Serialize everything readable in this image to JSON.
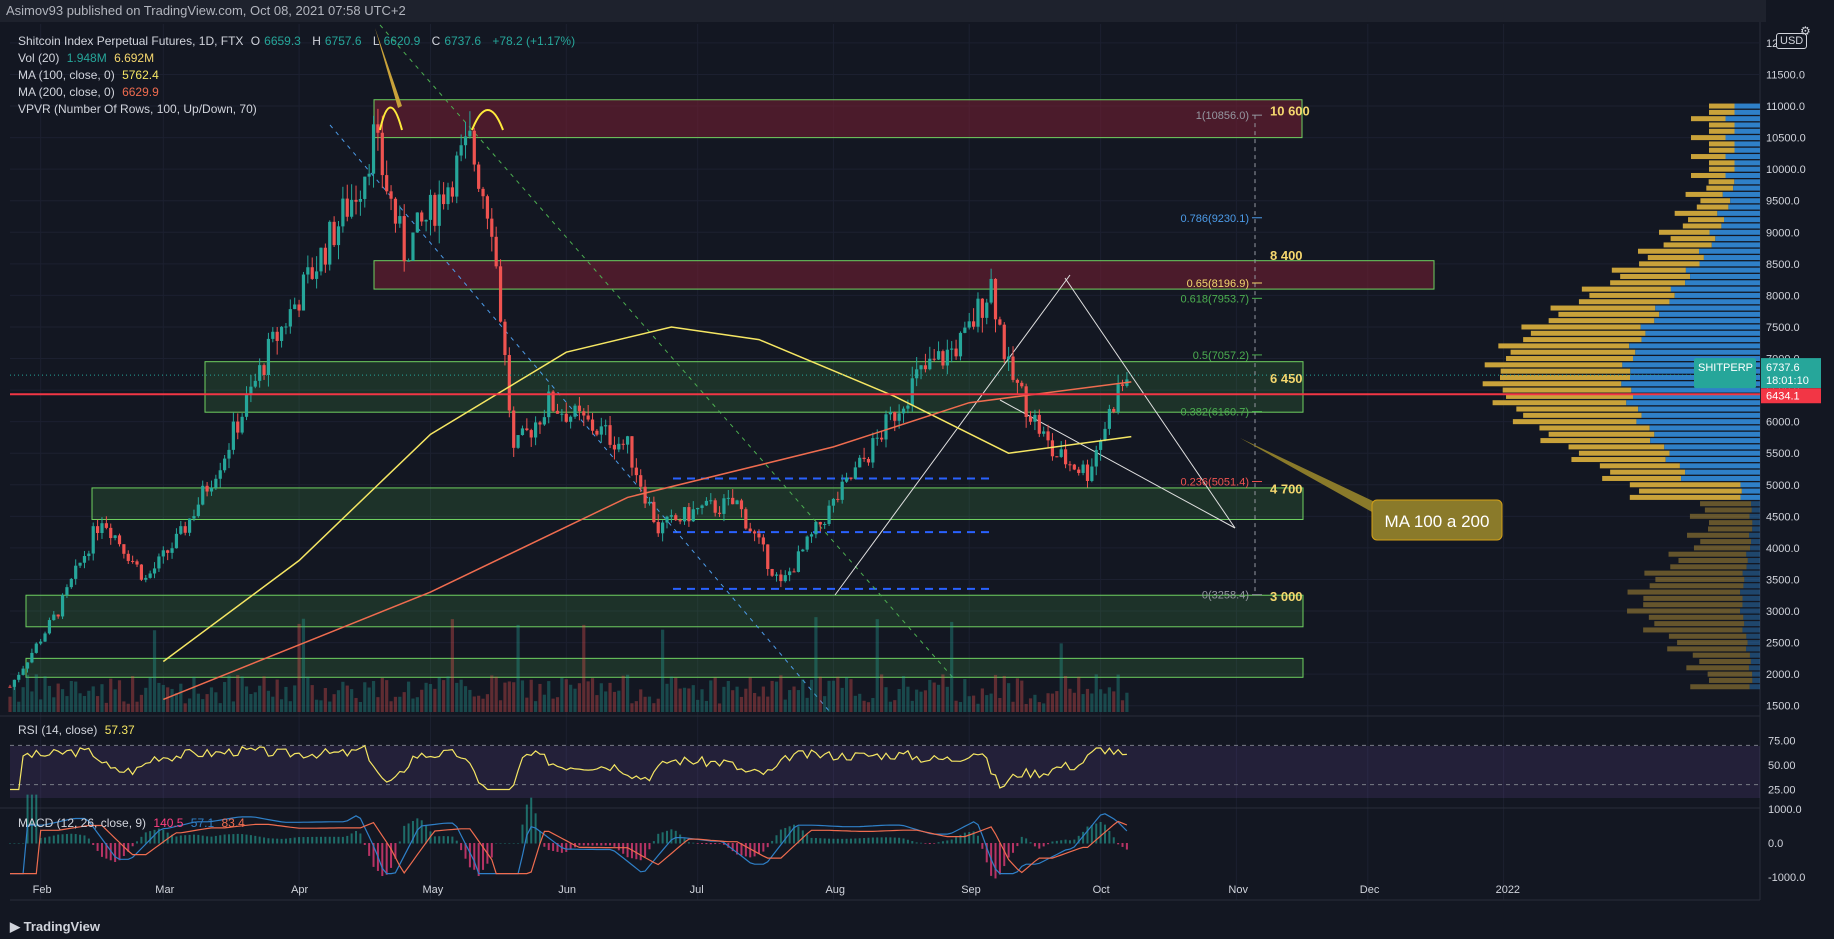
{
  "header": {
    "published_text": "Asimov93 published on TradingView.com, Oct 08, 2021 07:58 UTC+2"
  },
  "legend": {
    "title": "Shitcoin Index Perpetual Futures, 1D, FTX",
    "ohlc": [
      {
        "label": "O",
        "value": "6659.3"
      },
      {
        "label": "H",
        "value": "6757.6"
      },
      {
        "label": "L",
        "value": "6620.9"
      },
      {
        "label": "C",
        "value": "6737.6"
      }
    ],
    "change": "+78.2 (+1.17%)",
    "vol_label": "Vol (20)",
    "vol_values": [
      "1.948M",
      "6.692M"
    ],
    "ma100_label": "MA (100, close, 0)",
    "ma100_value": "5762.4",
    "ma200_label": "MA (200, close, 0)",
    "ma200_value": "6629.9",
    "vpvr_label": "VPVR (Number Of Rows, 100, Up/Down, 70)",
    "rsi_label": "RSI (14, close)",
    "rsi_value": "57.37",
    "macd_label": "MACD (12, 26, close, 9)",
    "macd_values": [
      "140.5",
      "57.1",
      "83.4"
    ]
  },
  "axis": {
    "currency": "USD",
    "price_ticks": [
      "12000.0",
      "11500.0",
      "11000.0",
      "10500.0",
      "10000.0",
      "9500.0",
      "9000.0",
      "8500.0",
      "8000.0",
      "7500.0",
      "7000.0",
      "6500.0",
      "6000.0",
      "5500.0",
      "5000.0",
      "4500.0",
      "4000.0",
      "3500.0",
      "3000.0",
      "2500.0",
      "2000.0",
      "1500.0"
    ],
    "rsi_ticks": [
      "75.00",
      "50.00",
      "25.00"
    ],
    "macd_ticks": [
      "1000.0",
      "0.0",
      "-1000.0"
    ],
    "months": [
      "Feb",
      "Mar",
      "Apr",
      "May",
      "Jun",
      "Jul",
      "Aug",
      "Sep",
      "Oct",
      "Nov",
      "Dec",
      "2022"
    ]
  },
  "price_labels": {
    "ticker": "SHITPERP",
    "last_price": "6737.6",
    "countdown": "18:01:10",
    "red_line_price": "6434.1"
  },
  "levels": [
    "10 600",
    "8 400",
    "6 450",
    "4 700",
    "3 000"
  ],
  "fib": [
    {
      "label": "1(10856.0)",
      "price": 10856.0,
      "color": "#9598a1"
    },
    {
      "label": "0.786(9230.1)",
      "price": 9230.1,
      "color": "#4c9be8"
    },
    {
      "label": "0.65(8196.9)",
      "price": 8196.9,
      "color": "#f5d76e"
    },
    {
      "label": "0.618(7953.7)",
      "price": 7953.7,
      "color": "#4caf50"
    },
    {
      "label": "0.5(7057.2)",
      "price": 7057.2,
      "color": "#4caf50"
    },
    {
      "label": "0.382(6160.7)",
      "price": 6160.7,
      "color": "#4caf50"
    },
    {
      "label": "0.236(5051.4)",
      "price": 5051.4,
      "color": "#ef5350"
    },
    {
      "label": "0(3258.4)",
      "price": 3258.4,
      "color": "#9598a1"
    }
  ],
  "annotation": "MA 100 a 200",
  "footer": {
    "brand": "TradingView"
  },
  "colors": {
    "background": "#131722",
    "up": "#26a69a",
    "down": "#ef5350",
    "ma100": "#f5e663",
    "ma200": "#ef6c4f",
    "green_zone": "#4caf50",
    "red_zone": "#7a1f33",
    "vpvr_up": "#2f80c8",
    "vpvr_down": "#c9a23a"
  },
  "chart_data": {
    "type": "candlestick",
    "title": "Shitcoin Index Perpetual Futures, 1D, FTX",
    "ylim": [
      1500,
      12000
    ],
    "zones": [
      {
        "type": "resistance",
        "from": 10500,
        "to": 11100
      },
      {
        "type": "resistance",
        "from": 8100,
        "to": 8550
      },
      {
        "type": "support",
        "from": 6150,
        "to": 6950
      },
      {
        "type": "support",
        "from": 4450,
        "to": 4950
      },
      {
        "type": "support",
        "from": 2750,
        "to": 3250
      },
      {
        "type": "support",
        "from": 1950,
        "to": 2250
      }
    ],
    "horizontal_line": 6434.1,
    "last_close": 6737.6,
    "price_path": [
      {
        "date": "2021-01-25",
        "close": 1800
      },
      {
        "date": "2021-02-05",
        "close": 3000
      },
      {
        "date": "2021-02-15",
        "close": 4500
      },
      {
        "date": "2021-02-25",
        "close": 3500
      },
      {
        "date": "2021-03-05",
        "close": 4200
      },
      {
        "date": "2021-03-15",
        "close": 5500
      },
      {
        "date": "2021-03-25",
        "close": 7100
      },
      {
        "date": "2021-04-05",
        "close": 8500
      },
      {
        "date": "2021-04-15",
        "close": 9800
      },
      {
        "date": "2021-04-18",
        "close": 10500
      },
      {
        "date": "2021-04-25",
        "close": 8700
      },
      {
        "date": "2021-05-01",
        "close": 9300
      },
      {
        "date": "2021-05-10",
        "close": 10400
      },
      {
        "date": "2021-05-15",
        "close": 9200
      },
      {
        "date": "2021-05-20",
        "close": 5500
      },
      {
        "date": "2021-05-28",
        "close": 6300
      },
      {
        "date": "2021-06-05",
        "close": 6000
      },
      {
        "date": "2021-06-15",
        "close": 5600
      },
      {
        "date": "2021-06-22",
        "close": 4300
      },
      {
        "date": "2021-07-01",
        "close": 4600
      },
      {
        "date": "2021-07-10",
        "close": 4700
      },
      {
        "date": "2021-07-20",
        "close": 3400
      },
      {
        "date": "2021-07-31",
        "close": 4600
      },
      {
        "date": "2021-08-10",
        "close": 5600
      },
      {
        "date": "2021-08-20",
        "close": 6700
      },
      {
        "date": "2021-08-31",
        "close": 7300
      },
      {
        "date": "2021-09-06",
        "close": 8200
      },
      {
        "date": "2021-09-10",
        "close": 6800
      },
      {
        "date": "2021-09-20",
        "close": 5500
      },
      {
        "date": "2021-09-28",
        "close": 5200
      },
      {
        "date": "2021-10-05",
        "close": 6500
      },
      {
        "date": "2021-10-08",
        "close": 6737.6
      }
    ],
    "ma100_path": [
      {
        "date": "2021-03-01",
        "value": 2200
      },
      {
        "date": "2021-04-01",
        "value": 3800
      },
      {
        "date": "2021-05-01",
        "value": 5800
      },
      {
        "date": "2021-06-01",
        "value": 7100
      },
      {
        "date": "2021-06-25",
        "value": 7500
      },
      {
        "date": "2021-07-15",
        "value": 7300
      },
      {
        "date": "2021-08-15",
        "value": 6400
      },
      {
        "date": "2021-09-10",
        "value": 5500
      },
      {
        "date": "2021-10-08",
        "value": 5762.4
      }
    ],
    "ma200_path": [
      {
        "date": "2021-03-01",
        "value": 1600
      },
      {
        "date": "2021-05-01",
        "value": 3300
      },
      {
        "date": "2021-06-15",
        "value": 4800
      },
      {
        "date": "2021-08-01",
        "value": 5600
      },
      {
        "date": "2021-09-01",
        "value": 6300
      },
      {
        "date": "2021-10-08",
        "value": 6629.9
      }
    ],
    "rsi": {
      "value": 57.37,
      "levels": [
        70,
        30
      ]
    },
    "macd": {
      "values": [
        140.5,
        57.1,
        83.4
      ]
    }
  }
}
